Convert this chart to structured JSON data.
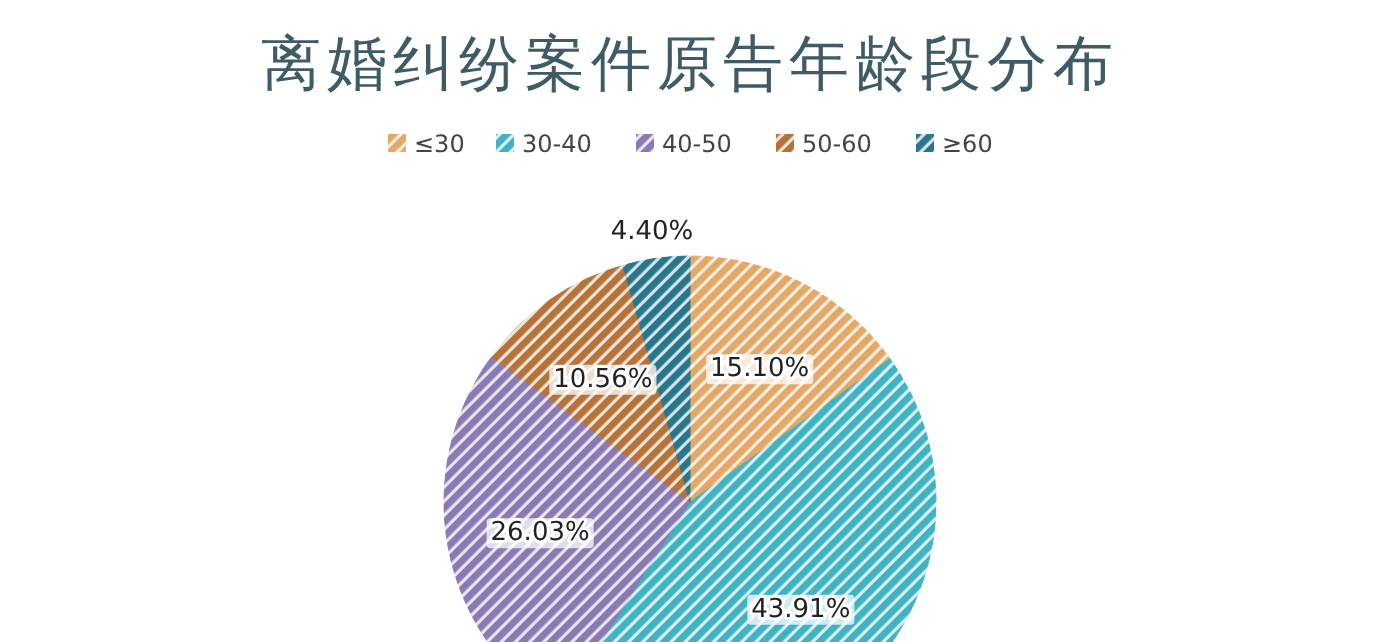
{
  "chart_data": {
    "type": "pie",
    "title": "离婚纠纷案件原告年龄段分布",
    "categories": [
      "≤30",
      "30-40",
      "40-50",
      "50-60",
      "≥60"
    ],
    "values": [
      15.1,
      43.91,
      26.03,
      10.56,
      4.4
    ],
    "value_labels": [
      "15.10%",
      "43.91%",
      "26.03%",
      "10.56%",
      "4.40%"
    ],
    "colors": [
      "#e3a866",
      "#3fb3c4",
      "#8b79b5",
      "#b5733a",
      "#27768c"
    ],
    "legend": "top"
  }
}
